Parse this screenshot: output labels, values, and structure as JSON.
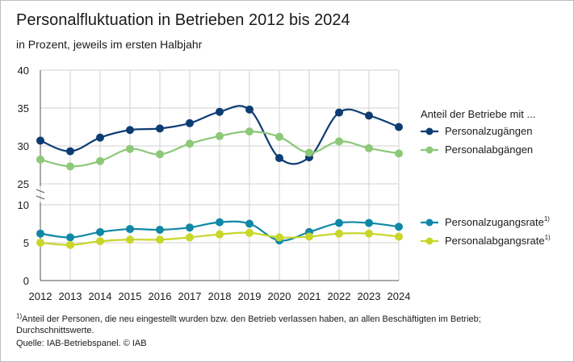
{
  "chart_data": {
    "type": "line",
    "title": "Personalfluktuation in Betrieben 2012 bis 2024",
    "subtitle": "in Prozent, jeweils im ersten Halbjahr",
    "categories": [
      "2012",
      "2013",
      "2014",
      "2015",
      "2016",
      "2017",
      "2018",
      "2019",
      "2020",
      "2021",
      "2022",
      "2023",
      "2024"
    ],
    "panels": [
      {
        "name": "upper",
        "ylim": [
          25,
          40
        ],
        "yticks": [
          "25",
          "30",
          "35",
          "40"
        ],
        "series": [
          {
            "name": "Personalzugängen",
            "color": "#0d3c73",
            "values": [
              30.7,
              29.3,
              31.1,
              32.1,
              32.3,
              33.0,
              34.5,
              34.8,
              28.4,
              28.5,
              34.4,
              34.0,
              32.5
            ]
          },
          {
            "name": "Personalabgängen",
            "color": "#8cc878",
            "values": [
              28.2,
              27.3,
              28.0,
              29.6,
              28.9,
              30.3,
              31.3,
              31.9,
              31.2,
              29.1,
              30.6,
              29.7,
              29.0
            ]
          }
        ]
      },
      {
        "name": "lower",
        "ylim": [
          0,
          10
        ],
        "yticks": [
          "0",
          "5",
          "10"
        ],
        "series": [
          {
            "name": "Personalzugangsrate",
            "color": "#0f88a6",
            "values": [
              6.2,
              5.7,
              6.4,
              6.8,
              6.7,
              7.0,
              7.7,
              7.5,
              5.3,
              6.4,
              7.6,
              7.6,
              7.1
            ]
          },
          {
            "name": "Personalabgangsrate",
            "color": "#c8d629",
            "values": [
              5.0,
              4.7,
              5.2,
              5.4,
              5.4,
              5.7,
              6.1,
              6.3,
              5.7,
              5.8,
              6.2,
              6.2,
              5.8
            ]
          }
        ]
      }
    ],
    "legend_heading": "Anteil der Betriebe mit ...",
    "legend_note_marker": "1)",
    "grid": true
  },
  "footnote": {
    "marker": "1)",
    "text": "Anteil der Personen, die neu eingestellt wurden bzw. den Betrieb verlassen haben, an allen Beschäftigten im Betrieb; Durchschnittswerte."
  },
  "source": "Quelle: IAB-Betriebspanel. © IAB"
}
